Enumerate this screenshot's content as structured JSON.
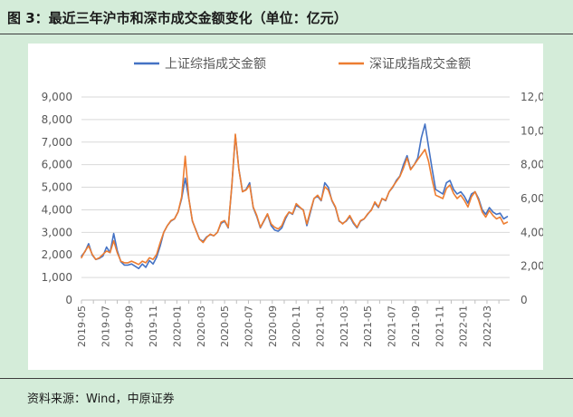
{
  "header": {
    "title": "图 3：最近三年沪市和深市成交金额变化（单位：亿元）"
  },
  "footer": {
    "source": "资料来源：Wind，中原证券"
  },
  "colors": {
    "sh": "#4472c4",
    "sz": "#ed7d31",
    "background": "#d4ecd9"
  },
  "chart_data": {
    "type": "line",
    "title": "",
    "legend": {
      "position": "top",
      "entries": [
        "上证综指成交金额",
        "深证成指成交金额"
      ]
    },
    "y_left": {
      "min": 0,
      "max": 9000,
      "step": 1000,
      "labels": [
        "0",
        "1,000",
        "2,000",
        "3,000",
        "4,000",
        "5,000",
        "6,000",
        "7,000",
        "8,000",
        "9,000"
      ]
    },
    "y_right": {
      "min": 0,
      "max": 12000,
      "step": 2000,
      "labels": [
        "0",
        "2,000",
        "4,000",
        "6,000",
        "8,000",
        "10,000",
        "12,000"
      ]
    },
    "x_labels": [
      "2019-05",
      "2019-07",
      "2019-09",
      "2019-11",
      "2020-01",
      "2020-03",
      "2020-05",
      "2020-07",
      "2020-09",
      "2020-11",
      "2021-01",
      "2021-03",
      "2021-05",
      "2021-07",
      "2021-09",
      "2021-11",
      "2022-01",
      "2022-03"
    ],
    "x_range": [
      "2019-05",
      "2022-04"
    ],
    "series": [
      {
        "name": "上证综指成交金额",
        "axis": "left",
        "values": [
          [
            0.0,
            1950
          ],
          [
            0.3,
            2150
          ],
          [
            0.6,
            2500
          ],
          [
            0.9,
            2000
          ],
          [
            1.2,
            1800
          ],
          [
            1.5,
            1850
          ],
          [
            1.8,
            1950
          ],
          [
            2.1,
            2350
          ],
          [
            2.4,
            2100
          ],
          [
            2.7,
            2950
          ],
          [
            3.0,
            2200
          ],
          [
            3.3,
            1700
          ],
          [
            3.6,
            1550
          ],
          [
            3.9,
            1550
          ],
          [
            4.2,
            1600
          ],
          [
            4.5,
            1500
          ],
          [
            4.8,
            1400
          ],
          [
            5.1,
            1600
          ],
          [
            5.4,
            1450
          ],
          [
            5.7,
            1750
          ],
          [
            6.0,
            1600
          ],
          [
            6.3,
            1900
          ],
          [
            6.6,
            2400
          ],
          [
            6.9,
            3000
          ],
          [
            7.2,
            3300
          ],
          [
            7.5,
            3500
          ],
          [
            7.8,
            3600
          ],
          [
            8.1,
            3900
          ],
          [
            8.4,
            4500
          ],
          [
            8.7,
            5400
          ],
          [
            9.0,
            4500
          ],
          [
            9.3,
            3500
          ],
          [
            9.6,
            3100
          ],
          [
            9.9,
            2700
          ],
          [
            10.2,
            2600
          ],
          [
            10.5,
            2800
          ],
          [
            10.8,
            2900
          ],
          [
            11.1,
            2850
          ],
          [
            11.4,
            3000
          ],
          [
            11.7,
            3400
          ],
          [
            12.0,
            3500
          ],
          [
            12.3,
            3200
          ],
          [
            12.6,
            5000
          ],
          [
            12.9,
            7300
          ],
          [
            13.2,
            5800
          ],
          [
            13.5,
            4800
          ],
          [
            13.8,
            4900
          ],
          [
            14.1,
            5200
          ],
          [
            14.4,
            4100
          ],
          [
            14.7,
            3700
          ],
          [
            15.0,
            3200
          ],
          [
            15.3,
            3500
          ],
          [
            15.6,
            3800
          ],
          [
            15.9,
            3300
          ],
          [
            16.2,
            3100
          ],
          [
            16.5,
            3050
          ],
          [
            16.8,
            3200
          ],
          [
            17.1,
            3600
          ],
          [
            17.4,
            3900
          ],
          [
            17.7,
            3800
          ],
          [
            18.0,
            4200
          ],
          [
            18.3,
            4100
          ],
          [
            18.6,
            4000
          ],
          [
            18.9,
            3300
          ],
          [
            19.2,
            3900
          ],
          [
            19.5,
            4500
          ],
          [
            19.8,
            4600
          ],
          [
            20.1,
            4400
          ],
          [
            20.4,
            5200
          ],
          [
            20.7,
            5000
          ],
          [
            21.0,
            4400
          ],
          [
            21.3,
            4100
          ],
          [
            21.6,
            3500
          ],
          [
            21.9,
            3400
          ],
          [
            22.2,
            3500
          ],
          [
            22.5,
            3700
          ],
          [
            22.8,
            3400
          ],
          [
            23.1,
            3200
          ],
          [
            23.4,
            3500
          ],
          [
            23.7,
            3600
          ],
          [
            24.0,
            3800
          ],
          [
            24.3,
            4000
          ],
          [
            24.6,
            4300
          ],
          [
            24.9,
            4100
          ],
          [
            25.2,
            4500
          ],
          [
            25.5,
            4400
          ],
          [
            25.8,
            4800
          ],
          [
            26.1,
            5000
          ],
          [
            26.4,
            5300
          ],
          [
            26.7,
            5500
          ],
          [
            27.0,
            6000
          ],
          [
            27.3,
            6400
          ],
          [
            27.6,
            5800
          ],
          [
            27.9,
            6000
          ],
          [
            28.2,
            6300
          ],
          [
            28.5,
            7200
          ],
          [
            28.8,
            7800
          ],
          [
            29.1,
            6800
          ],
          [
            29.4,
            5800
          ],
          [
            29.7,
            4900
          ],
          [
            30.0,
            4800
          ],
          [
            30.3,
            4700
          ],
          [
            30.6,
            5200
          ],
          [
            30.9,
            5300
          ],
          [
            31.2,
            4900
          ],
          [
            31.5,
            4700
          ],
          [
            31.8,
            4800
          ],
          [
            32.1,
            4600
          ],
          [
            32.4,
            4300
          ],
          [
            32.7,
            4700
          ],
          [
            33.0,
            4800
          ],
          [
            33.3,
            4500
          ],
          [
            33.6,
            4000
          ],
          [
            33.9,
            3800
          ],
          [
            34.2,
            4100
          ],
          [
            34.5,
            3900
          ],
          [
            34.8,
            3800
          ],
          [
            35.1,
            3850
          ],
          [
            35.4,
            3600
          ],
          [
            35.7,
            3700
          ]
        ]
      },
      {
        "name": "深证成指成交金额",
        "axis": "right",
        "values": [
          [
            0.0,
            2500
          ],
          [
            0.3,
            2900
          ],
          [
            0.6,
            3200
          ],
          [
            0.9,
            2700
          ],
          [
            1.2,
            2400
          ],
          [
            1.5,
            2500
          ],
          [
            1.8,
            2700
          ],
          [
            2.1,
            2900
          ],
          [
            2.4,
            2800
          ],
          [
            2.7,
            3500
          ],
          [
            3.0,
            2800
          ],
          [
            3.3,
            2300
          ],
          [
            3.6,
            2200
          ],
          [
            3.9,
            2200
          ],
          [
            4.2,
            2300
          ],
          [
            4.5,
            2200
          ],
          [
            4.8,
            2100
          ],
          [
            5.1,
            2300
          ],
          [
            5.4,
            2200
          ],
          [
            5.7,
            2500
          ],
          [
            6.0,
            2400
          ],
          [
            6.3,
            2700
          ],
          [
            6.6,
            3400
          ],
          [
            6.9,
            4000
          ],
          [
            7.2,
            4400
          ],
          [
            7.5,
            4700
          ],
          [
            7.8,
            4800
          ],
          [
            8.1,
            5200
          ],
          [
            8.4,
            6100
          ],
          [
            8.7,
            8500
          ],
          [
            9.0,
            6000
          ],
          [
            9.3,
            4700
          ],
          [
            9.6,
            4100
          ],
          [
            9.9,
            3600
          ],
          [
            10.2,
            3400
          ],
          [
            10.5,
            3700
          ],
          [
            10.8,
            3900
          ],
          [
            11.1,
            3800
          ],
          [
            11.4,
            4000
          ],
          [
            11.7,
            4600
          ],
          [
            12.0,
            4700
          ],
          [
            12.3,
            4300
          ],
          [
            12.6,
            6700
          ],
          [
            12.9,
            9800
          ],
          [
            13.2,
            7700
          ],
          [
            13.5,
            6400
          ],
          [
            13.8,
            6500
          ],
          [
            14.1,
            6800
          ],
          [
            14.4,
            5500
          ],
          [
            14.7,
            5000
          ],
          [
            15.0,
            4300
          ],
          [
            15.3,
            4700
          ],
          [
            15.6,
            5100
          ],
          [
            15.9,
            4500
          ],
          [
            16.2,
            4300
          ],
          [
            16.5,
            4200
          ],
          [
            16.8,
            4400
          ],
          [
            17.1,
            4900
          ],
          [
            17.4,
            5200
          ],
          [
            17.7,
            5100
          ],
          [
            18.0,
            5700
          ],
          [
            18.3,
            5500
          ],
          [
            18.6,
            5300
          ],
          [
            18.9,
            4500
          ],
          [
            19.2,
            5300
          ],
          [
            19.5,
            6000
          ],
          [
            19.8,
            6200
          ],
          [
            20.1,
            5900
          ],
          [
            20.4,
            6700
          ],
          [
            20.7,
            6500
          ],
          [
            21.0,
            5900
          ],
          [
            21.3,
            5500
          ],
          [
            21.6,
            4700
          ],
          [
            21.9,
            4500
          ],
          [
            22.2,
            4700
          ],
          [
            22.5,
            5000
          ],
          [
            22.8,
            4600
          ],
          [
            23.1,
            4300
          ],
          [
            23.4,
            4700
          ],
          [
            23.7,
            4800
          ],
          [
            24.0,
            5100
          ],
          [
            24.3,
            5300
          ],
          [
            24.6,
            5800
          ],
          [
            24.9,
            5500
          ],
          [
            25.2,
            6000
          ],
          [
            25.5,
            5900
          ],
          [
            25.8,
            6400
          ],
          [
            26.1,
            6700
          ],
          [
            26.4,
            7000
          ],
          [
            26.7,
            7300
          ],
          [
            27.0,
            7800
          ],
          [
            27.3,
            8400
          ],
          [
            27.6,
            7700
          ],
          [
            27.9,
            8000
          ],
          [
            28.2,
            8300
          ],
          [
            28.5,
            8600
          ],
          [
            28.8,
            8900
          ],
          [
            29.1,
            8200
          ],
          [
            29.4,
            7100
          ],
          [
            29.7,
            6200
          ],
          [
            30.0,
            6100
          ],
          [
            30.3,
            6000
          ],
          [
            30.6,
            6600
          ],
          [
            30.9,
            6800
          ],
          [
            31.2,
            6300
          ],
          [
            31.5,
            6000
          ],
          [
            31.8,
            6200
          ],
          [
            32.1,
            5900
          ],
          [
            32.4,
            5500
          ],
          [
            32.7,
            6100
          ],
          [
            33.0,
            6400
          ],
          [
            33.3,
            5900
          ],
          [
            33.6,
            5200
          ],
          [
            33.9,
            4900
          ],
          [
            34.2,
            5300
          ],
          [
            34.5,
            5000
          ],
          [
            34.8,
            4800
          ],
          [
            35.1,
            4900
          ],
          [
            35.4,
            4500
          ],
          [
            35.7,
            4600
          ]
        ]
      }
    ]
  }
}
